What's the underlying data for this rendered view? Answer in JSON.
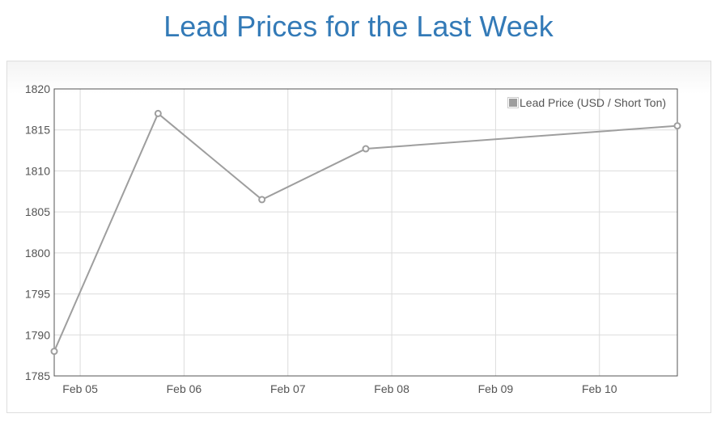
{
  "page": {
    "title": "Lead Prices for the Last Week"
  },
  "colors": {
    "title": "#337ab7",
    "series": "#9e9e9e",
    "grid": "#dcdcdc",
    "axis": "#545454"
  },
  "chart_data": {
    "type": "line",
    "title": "",
    "xlabel": "",
    "ylabel": "",
    "x_ticks": [
      "Feb 05",
      "Feb 06",
      "Feb 07",
      "Feb 08",
      "Feb 09",
      "Feb 10"
    ],
    "xlim": [
      "2024-02-04T18:00",
      "2024-02-10T18:00"
    ],
    "ylim": [
      1785,
      1820
    ],
    "y_ticks": [
      1785,
      1790,
      1795,
      1800,
      1805,
      1810,
      1815,
      1820
    ],
    "grid": true,
    "legend": {
      "position": "top-right",
      "entries": [
        "Lead Price (USD / Short Ton)"
      ]
    },
    "series": [
      {
        "name": "Lead Price (USD / Short Ton)",
        "x": [
          "2024-02-04T18:00",
          "2024-02-05T18:00",
          "2024-02-06T18:00",
          "2024-02-07T18:00",
          "2024-02-10T18:00"
        ],
        "values": [
          1788,
          1817,
          1806.5,
          1812.7,
          1815.5
        ]
      }
    ]
  }
}
